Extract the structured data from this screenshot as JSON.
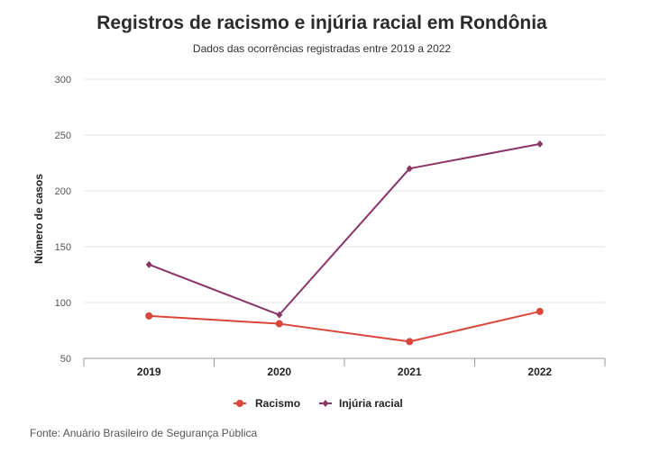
{
  "chart_data": {
    "type": "line",
    "title": "Registros de racismo e injúria racial em Rondônia",
    "subtitle": "Dados das ocorrências registradas entre 2019 a 2022",
    "xlabel": "",
    "ylabel": "Número de casos",
    "categories": [
      "2019",
      "2020",
      "2021",
      "2022"
    ],
    "ylim": [
      50,
      300
    ],
    "yticks": [
      50,
      100,
      150,
      200,
      250,
      300
    ],
    "grid": true,
    "legend_position": "bottom",
    "series": [
      {
        "name": "Racismo",
        "values": [
          88,
          81,
          65,
          92
        ],
        "color": "#d9473b",
        "marker": "circle"
      },
      {
        "name": "Injúria racial",
        "values": [
          134,
          89,
          220,
          242
        ],
        "color": "#8b3567",
        "marker": "diamond"
      }
    ],
    "source": "Fonte: Anuário Brasileiro de Segurança Pública"
  }
}
